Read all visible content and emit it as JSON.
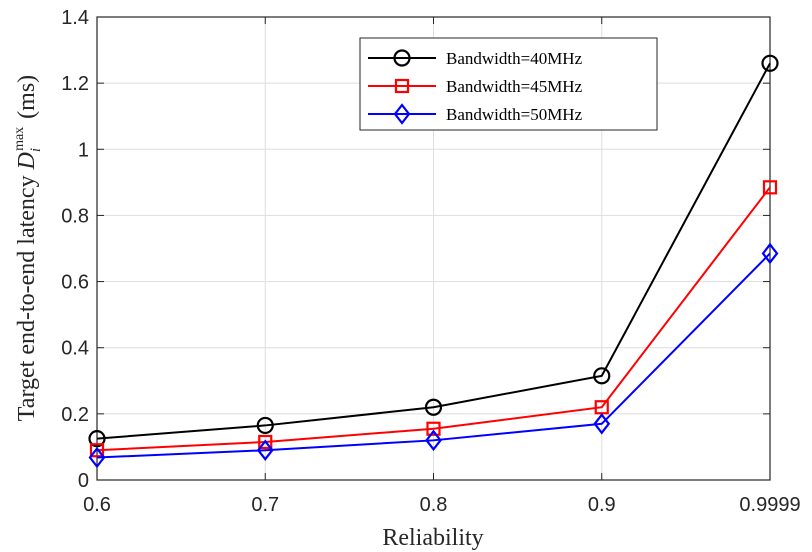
{
  "chart_data": {
    "type": "line",
    "categories": [
      "0.6",
      "0.7",
      "0.8",
      "0.9",
      "0.9999"
    ],
    "series": [
      {
        "name": "Bandwidth=40MHz",
        "values": [
          0.125,
          0.165,
          0.22,
          0.315,
          1.26
        ],
        "color": "#000000",
        "marker": "circle"
      },
      {
        "name": "Bandwidth=45MHz",
        "values": [
          0.09,
          0.115,
          0.155,
          0.22,
          0.885
        ],
        "color": "#ff0000",
        "marker": "square"
      },
      {
        "name": "Bandwidth=50MHz",
        "values": [
          0.068,
          0.09,
          0.12,
          0.17,
          0.685
        ],
        "color": "#0000ff",
        "marker": "diamond"
      }
    ],
    "xlabel": "Reliability",
    "ylabel_main": "Target end-to-end latency",
    "ylabel_symbol": "D",
    "ylabel_sub": "i",
    "ylabel_sup": "max",
    "ylabel_unit": "(ms)",
    "ylim": [
      0,
      1.4
    ],
    "yticks": [
      "0",
      "0.2",
      "0.4",
      "0.6",
      "0.8",
      "1",
      "1.2",
      "1.4"
    ],
    "grid": true,
    "legend_position": "top-right"
  }
}
